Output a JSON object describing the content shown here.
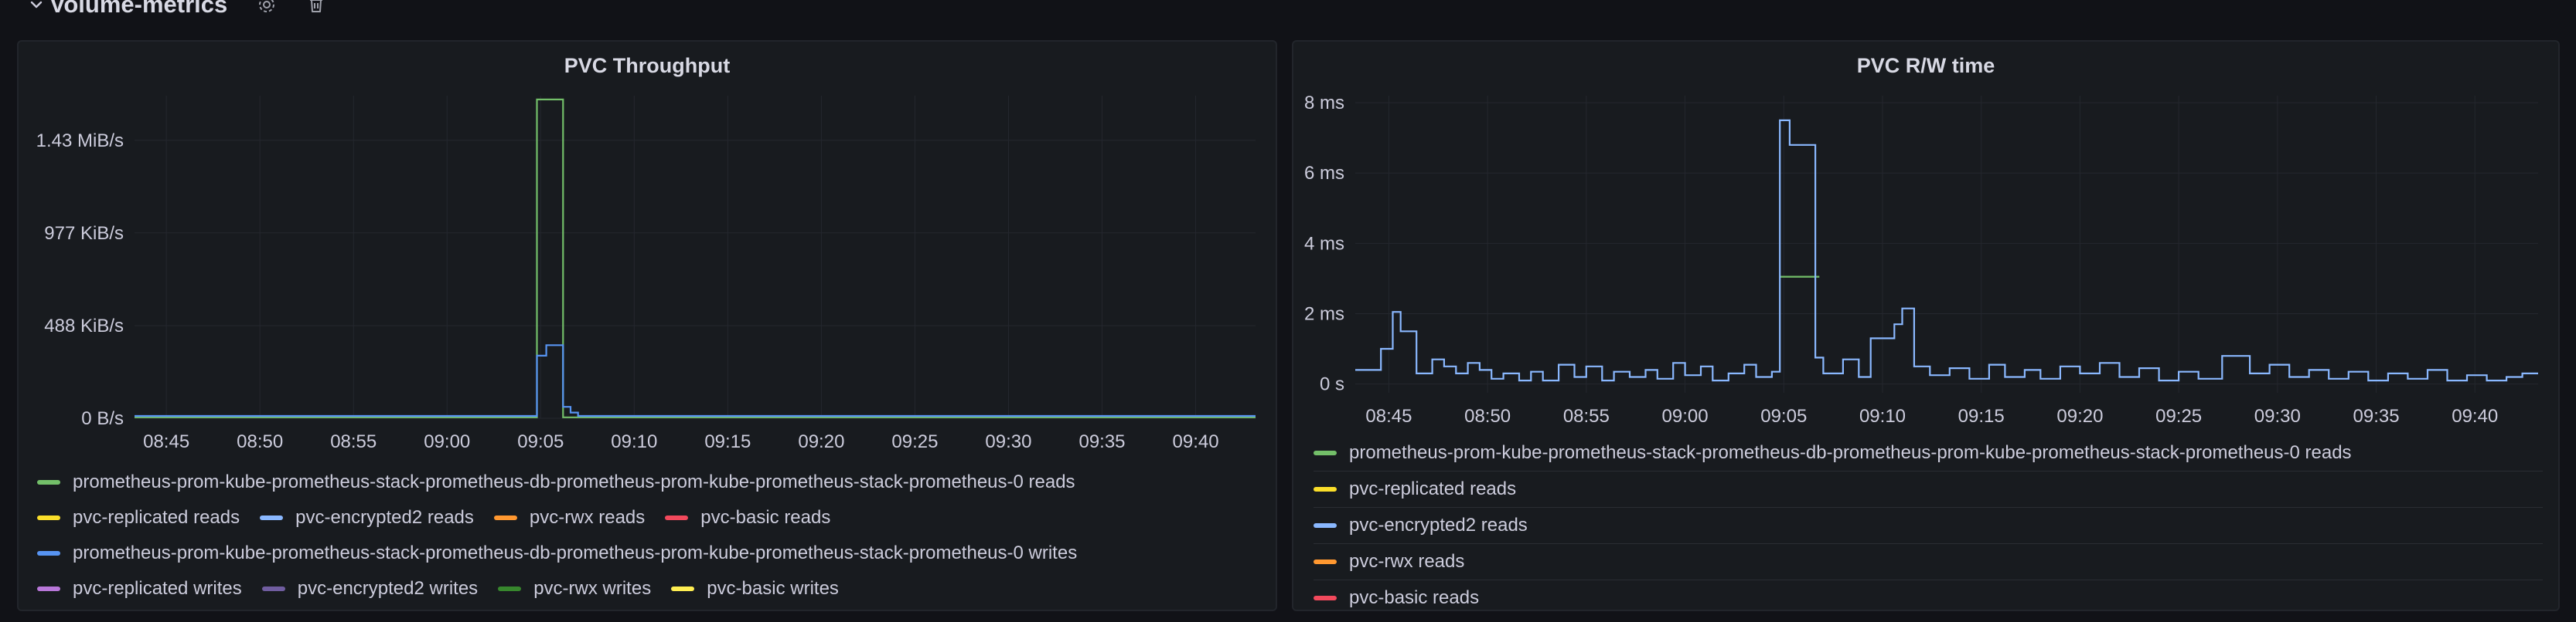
{
  "row": {
    "title": "Volume-metrics",
    "icons": [
      "chevron-down-icon",
      "gear-icon",
      "trash-icon"
    ]
  },
  "colors": {
    "green": "#73bf69",
    "yellow": "#fade2a",
    "blue": "#8ab8ff",
    "orange": "#ff9830",
    "red": "#f2495c",
    "dark_blue": "#5794f2",
    "purple": "#b877d9",
    "dark_purple": "#705da0",
    "dark_green": "#37872d",
    "light_yellow": "#ffee52"
  },
  "panels": [
    {
      "title": "PVC Throughput"
    },
    {
      "title": "PVC R/W time"
    }
  ],
  "chart_data": [
    {
      "type": "line",
      "title": "PVC Throughput",
      "x_ticks": [
        "08:45",
        "08:50",
        "08:55",
        "09:00",
        "09:05",
        "09:10",
        "09:15",
        "09:20",
        "09:25",
        "09:30",
        "09:35",
        "09:40"
      ],
      "y_ticks": [
        "0 B/s",
        "488 KiB/s",
        "977 KiB/s",
        "1.43 MiB/s"
      ],
      "y_tick_values": [
        0,
        488,
        977,
        1465
      ],
      "ylim": [
        0,
        1700
      ],
      "y_unit": "KiB/s",
      "xlim": [
        -1.7,
        58.2
      ],
      "legend_placement": "bottom",
      "legend_rows": [
        [
          0
        ],
        [
          1,
          2,
          3,
          4
        ],
        [
          5
        ],
        [
          6,
          7,
          8,
          9
        ]
      ],
      "series": [
        {
          "name": "prometheus-prom-kube-prometheus-stack-prometheus-db-prometheus-prom-kube-prometheus-stack-prometheus-0 reads",
          "color": "green",
          "x": [
            -1.7,
            19.8,
            19.8,
            21.2,
            21.2,
            58.2
          ],
          "y": [
            5,
            5,
            1680,
            1680,
            5,
            5
          ]
        },
        {
          "name": "pvc-replicated reads",
          "color": "yellow",
          "x": [],
          "y": []
        },
        {
          "name": "pvc-encrypted2 reads",
          "color": "blue",
          "x": [],
          "y": []
        },
        {
          "name": "pvc-rwx reads",
          "color": "orange",
          "x": [],
          "y": []
        },
        {
          "name": "pvc-basic reads",
          "color": "red",
          "x": [],
          "y": []
        },
        {
          "name": "prometheus-prom-kube-prometheus-stack-prometheus-db-prometheus-prom-kube-prometheus-stack-prometheus-0 writes",
          "color": "dark_blue",
          "x": [
            -1.7,
            19.8,
            19.8,
            20.3,
            20.3,
            21.2,
            21.2,
            21.6,
            21.6,
            22.0,
            22.0,
            58.2
          ],
          "y": [
            12,
            12,
            330,
            330,
            385,
            385,
            60,
            60,
            30,
            30,
            12,
            12
          ]
        },
        {
          "name": "pvc-replicated writes",
          "color": "purple",
          "x": [],
          "y": []
        },
        {
          "name": "pvc-encrypted2 writes",
          "color": "dark_purple",
          "x": [],
          "y": []
        },
        {
          "name": "pvc-rwx writes",
          "color": "dark_green",
          "x": [],
          "y": []
        },
        {
          "name": "pvc-basic writes",
          "color": "light_yellow",
          "x": [],
          "y": []
        }
      ]
    },
    {
      "type": "line",
      "title": "PVC R/W time",
      "x_ticks": [
        "08:45",
        "08:50",
        "08:55",
        "09:00",
        "09:05",
        "09:10",
        "09:15",
        "09:20",
        "09:25",
        "09:30",
        "09:35",
        "09:40"
      ],
      "y_ticks": [
        "0 s",
        "2 ms",
        "4 ms",
        "6 ms",
        "8 ms"
      ],
      "y_tick_values": [
        0,
        2,
        4,
        6,
        8
      ],
      "ylim": [
        -0.25,
        8.2
      ],
      "y_unit": "ms",
      "xlim": [
        -1.7,
        58.2
      ],
      "legend_placement": "bottom",
      "series": [
        {
          "name": "prometheus-prom-kube-prometheus-stack-prometheus-db-prometheus-prom-kube-prometheus-stack-prometheus-0 reads",
          "color": "green",
          "x": [
            19.8,
            20.6,
            20.6,
            21.8
          ],
          "y": [
            3.05,
            3.05,
            3.05,
            3.05
          ]
        },
        {
          "name": "pvc-replicated reads",
          "color": "yellow",
          "x": [],
          "y": []
        },
        {
          "name": "pvc-encrypted2 reads",
          "color": "blue",
          "x": [
            -1.7,
            -0.4,
            -0.4,
            0.2,
            0.2,
            0.6,
            0.6,
            1.4,
            1.4,
            2.2,
            2.2,
            2.8,
            2.8,
            3.4,
            3.4,
            4.0,
            4.0,
            4.6,
            4.6,
            5.2,
            5.2,
            5.8,
            5.8,
            6.6,
            6.6,
            7.2,
            7.2,
            7.8,
            7.8,
            8.6,
            8.6,
            9.4,
            9.4,
            10.0,
            10.0,
            10.8,
            10.8,
            11.4,
            11.4,
            12.2,
            12.2,
            13.0,
            13.0,
            13.6,
            13.6,
            14.4,
            14.4,
            15.0,
            15.0,
            15.8,
            15.8,
            16.4,
            16.4,
            17.2,
            17.2,
            18.0,
            18.0,
            18.6,
            18.6,
            19.4,
            19.4,
            19.8,
            19.8,
            20.3,
            20.3,
            21.6,
            21.6,
            22.0,
            22.0,
            23.0,
            23.0,
            23.8,
            23.8,
            24.4,
            24.4,
            25.6,
            25.6,
            26.0,
            26.0,
            26.6,
            26.6,
            27.4,
            27.4,
            28.4,
            28.4,
            29.4,
            29.4,
            30.4,
            30.4,
            31.2,
            31.2,
            32.2,
            32.2,
            33.0,
            33.0,
            34.0,
            34.0,
            35.0,
            35.0,
            36.0,
            36.0,
            37.0,
            37.0,
            38.0,
            38.0,
            39.0,
            39.0,
            40.0,
            40.0,
            41.0,
            41.0,
            42.2,
            42.2,
            43.6,
            43.6,
            44.6,
            44.6,
            45.6,
            45.6,
            46.6,
            46.6,
            47.6,
            47.6,
            48.6,
            48.6,
            49.6,
            49.6,
            50.6,
            50.6,
            51.6,
            51.6,
            52.6,
            52.6,
            53.6,
            53.6,
            54.6,
            54.6,
            55.6,
            55.6,
            56.6,
            56.6,
            57.4,
            57.4,
            58.2
          ],
          "y": [
            0.4,
            0.4,
            1.0,
            1.0,
            2.05,
            2.05,
            1.5,
            1.5,
            0.3,
            0.3,
            0.7,
            0.7,
            0.5,
            0.5,
            0.3,
            0.3,
            0.6,
            0.6,
            0.4,
            0.4,
            0.15,
            0.15,
            0.3,
            0.3,
            0.1,
            0.1,
            0.35,
            0.35,
            0.1,
            0.1,
            0.55,
            0.55,
            0.2,
            0.2,
            0.5,
            0.5,
            0.1,
            0.1,
            0.35,
            0.35,
            0.2,
            0.2,
            0.4,
            0.4,
            0.15,
            0.15,
            0.6,
            0.6,
            0.25,
            0.25,
            0.5,
            0.5,
            0.1,
            0.1,
            0.3,
            0.3,
            0.55,
            0.55,
            0.2,
            0.2,
            0.35,
            0.35,
            7.5,
            7.5,
            6.8,
            6.8,
            0.75,
            0.75,
            0.3,
            0.3,
            0.7,
            0.7,
            0.2,
            0.2,
            1.3,
            1.3,
            1.7,
            1.7,
            2.15,
            2.15,
            0.5,
            0.5,
            0.25,
            0.25,
            0.45,
            0.45,
            0.15,
            0.15,
            0.55,
            0.55,
            0.2,
            0.2,
            0.4,
            0.4,
            0.15,
            0.15,
            0.5,
            0.5,
            0.3,
            0.3,
            0.6,
            0.6,
            0.2,
            0.2,
            0.45,
            0.45,
            0.1,
            0.1,
            0.35,
            0.35,
            0.15,
            0.15,
            0.8,
            0.8,
            0.3,
            0.3,
            0.55,
            0.55,
            0.2,
            0.2,
            0.4,
            0.4,
            0.15,
            0.15,
            0.35,
            0.35,
            0.1,
            0.1,
            0.3,
            0.3,
            0.15,
            0.15,
            0.4,
            0.4,
            0.1,
            0.1,
            0.25,
            0.25,
            0.1,
            0.1,
            0.2,
            0.2,
            0.3,
            0.3
          ]
        },
        {
          "name": "pvc-rwx reads",
          "color": "orange",
          "x": [],
          "y": []
        },
        {
          "name": "pvc-basic reads",
          "color": "red",
          "x": [],
          "y": []
        }
      ]
    }
  ]
}
